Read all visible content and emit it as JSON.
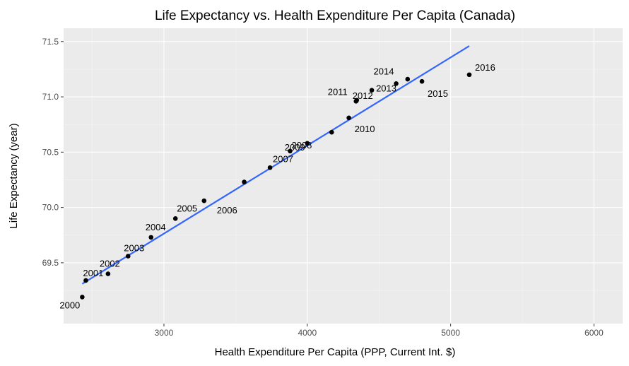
{
  "chart_data": {
    "type": "scatter",
    "title": "Life Expectancy vs. Health Expenditure Per Capita (Canada)",
    "xlabel": "Health Expenditure Per Capita (PPP, Current Int. $)",
    "ylabel": "Life Expectancy (year)",
    "xlim": [
      2300,
      6200
    ],
    "ylim": [
      68.95,
      71.62
    ],
    "x_ticks": [
      3000,
      4000,
      5000,
      6000
    ],
    "y_ticks": [
      69.5,
      70.0,
      70.5,
      71.0,
      71.5
    ],
    "x_tick_labels": [
      "3000",
      "4000",
      "5000",
      "6000"
    ],
    "y_tick_labels": [
      "69.5",
      "70.0",
      "70.5",
      "71.0",
      "71.5"
    ],
    "grid": true,
    "points": [
      {
        "label": "2000",
        "x": 2430,
        "y": 69.19
      },
      {
        "label": "2001",
        "x": 2455,
        "y": 69.34
      },
      {
        "label": "2002",
        "x": 2610,
        "y": 69.4
      },
      {
        "label": "2003",
        "x": 2750,
        "y": 69.56
      },
      {
        "label": "2004",
        "x": 2910,
        "y": 69.73
      },
      {
        "label": "2005",
        "x": 3080,
        "y": 69.9
      },
      {
        "label": "2006",
        "x": 3280,
        "y": 70.06
      },
      {
        "label": "",
        "x": 3560,
        "y": 70.23
      },
      {
        "label": "2007",
        "x": 3740,
        "y": 70.36
      },
      {
        "label": "2008",
        "x": 3880,
        "y": 70.51
      },
      {
        "label": "2009",
        "x": 4000,
        "y": 70.58
      },
      {
        "label": "",
        "x": 4170,
        "y": 70.68
      },
      {
        "label": "2010",
        "x": 4290,
        "y": 70.81
      },
      {
        "label": "2011",
        "x": 4340,
        "y": 70.96
      },
      {
        "label": "2012",
        "x": 4345,
        "y": 70.97
      },
      {
        "label": "2013",
        "x": 4450,
        "y": 71.06
      },
      {
        "label": "2014",
        "x": 4620,
        "y": 71.12
      },
      {
        "label": "",
        "x": 4700,
        "y": 71.16
      },
      {
        "label": "2015",
        "x": 4800,
        "y": 71.14
      },
      {
        "label": "2016",
        "x": 5130,
        "y": 71.2
      }
    ],
    "fit_line": {
      "x": [
        2430,
        5130
      ],
      "y": [
        69.31,
        71.46
      ],
      "color": "#3366FF"
    }
  }
}
